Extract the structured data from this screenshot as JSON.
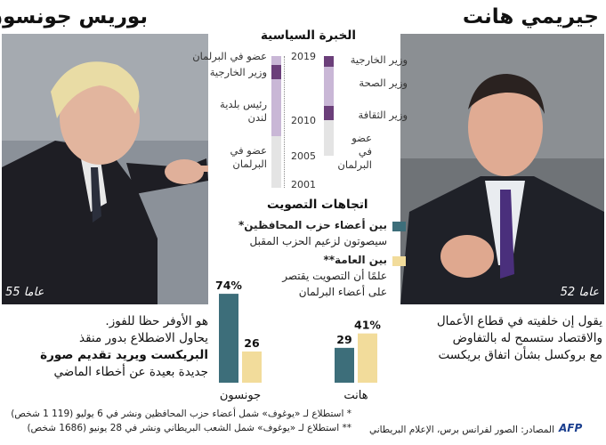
{
  "colors": {
    "members": "#3d6e7a",
    "public": "#f2dc9b",
    "career_dark": "#6b3f7a",
    "career_light": "#c9b7d6",
    "career_pale": "#e4e4e4",
    "timeline_gray": "#bdbdbd"
  },
  "left": {
    "name": "بوريس جونسون",
    "age": "55 عاما",
    "desc": [
      "هو الأوفر حظا للفوز.",
      "يحاول الاضطلاع بدور منقذ",
      "البريكست ويريد تقديم صورة",
      "جديدة بعيدة عن أخطاء الماضي"
    ]
  },
  "right": {
    "name": "جيريمي هانت",
    "age": "52 عاما",
    "desc": [
      "يقول إن خلفيته في قطاع الأعمال",
      "والاقتصاد ستسمح له بالتفاوض",
      "مع بروكسل بشأن اتفاق بريكست"
    ]
  },
  "experience": {
    "title": "الخبرة السياسية",
    "years": [
      "2019",
      "2010",
      "2005",
      "2001"
    ],
    "johnson_roles": [
      "عضو في البرلمان",
      "وزير الخارجية",
      "رئيس بلدية لندن",
      "عضو في البرلمان"
    ],
    "hunt_roles": [
      "وزير الخارجية",
      "وزير الصحة",
      "وزير الثقافة",
      "عضو في البرلمان"
    ]
  },
  "voting": {
    "title": "اتجاهات التصويت",
    "legend": [
      {
        "label": "بين أعضاء حزب المحافظين*",
        "sub": [
          "سيصوتون لزعيم الحزب المقبل"
        ]
      },
      {
        "label": "بين العامة**",
        "sub": [
          "علمًا أن التصويت يقتصر",
          "على أعضاء البرلمان"
        ]
      }
    ]
  },
  "chart_data": {
    "type": "bar",
    "categories": [
      "جونسون",
      "هانت"
    ],
    "series": [
      {
        "name": "بين أعضاء حزب المحافظين*",
        "values": [
          74,
          29
        ],
        "labels": [
          "74%",
          "29"
        ]
      },
      {
        "name": "بين العامة**",
        "values": [
          26,
          41
        ],
        "labels": [
          "26",
          "41%"
        ]
      }
    ],
    "ylim": [
      0,
      80
    ]
  },
  "footnotes": [
    "* استطلاع لـ «يوغوف» شمل أعضاء حزب المحافظين ونشر في 6 يوليو (119 1 شخص)",
    "** استطلاع لـ «يوغوف» شمل الشعب البريطاني ونشر في 28 يونيو (1686 شخص)"
  ],
  "source": "المصادر: الصور لفرانس برس، الإعلام البريطاني",
  "logo": "AFP"
}
